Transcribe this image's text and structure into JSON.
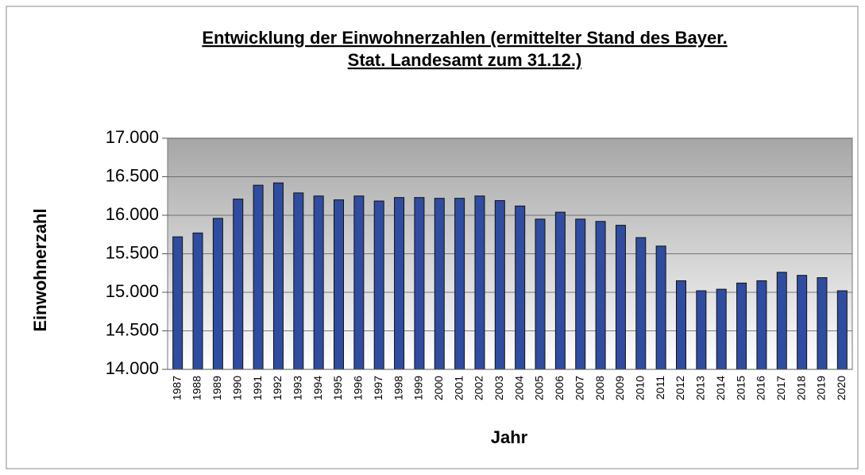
{
  "chart_data": {
    "type": "bar",
    "title": [
      "Entwicklung der Einwohnerzahlen (ermittelter Stand des Bayer.",
      "Stat. Landesamt zum 31.12.)"
    ],
    "x_label": "Jahr",
    "y_label": "Einwohnerzahl",
    "categories": [
      "1987",
      "1988",
      "1989",
      "1990",
      "1991",
      "1992",
      "1993",
      "1994",
      "1995",
      "1996",
      "1997",
      "1998",
      "1999",
      "2000",
      "2001",
      "2002",
      "2003",
      "2004",
      "2005",
      "2006",
      "2007",
      "2008",
      "2009",
      "2010",
      "2011",
      "2012",
      "2013",
      "2014",
      "2015",
      "2016",
      "2017",
      "2018",
      "2019",
      "2020"
    ],
    "values": [
      15720,
      15770,
      15960,
      16210,
      16390,
      16420,
      16290,
      16250,
      16200,
      16250,
      16185,
      16230,
      16230,
      16220,
      16220,
      16250,
      16190,
      16120,
      15950,
      16040,
      15950,
      15920,
      15870,
      15710,
      15600,
      15150,
      15020,
      15040,
      15120,
      15150,
      15260,
      15220,
      15190,
      15020
    ],
    "color": "#2f4ca0",
    "ylim": [
      14000,
      17000
    ],
    "yticks": [
      {
        "value": 14000,
        "label": "14.000"
      },
      {
        "value": 14500,
        "label": "14.500"
      },
      {
        "value": 15000,
        "label": "15.000"
      },
      {
        "value": 15500,
        "label": "15.500"
      },
      {
        "value": 16000,
        "label": "16.000"
      },
      {
        "value": 16500,
        "label": "16.500"
      },
      {
        "value": 17000,
        "label": "17.000"
      }
    ],
    "grid": true
  }
}
